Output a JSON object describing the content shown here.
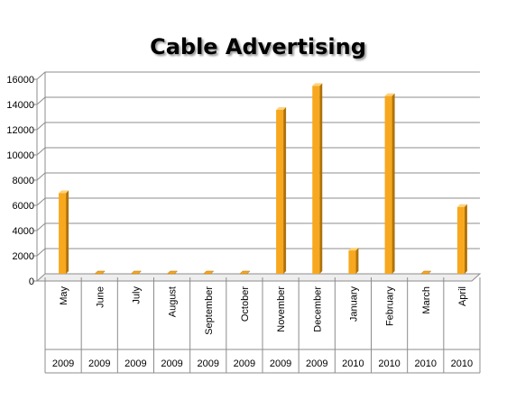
{
  "chart_data": {
    "type": "bar",
    "title": "Cable Advertising",
    "xlabel": "",
    "ylabel": "",
    "ylim": [
      0,
      16000
    ],
    "y_ticks": [
      "0",
      "2000",
      "4000",
      "6000",
      "8000",
      "10000",
      "12000",
      "14000",
      "16000"
    ],
    "categories": [
      "May",
      "June",
      "July",
      "August",
      "September",
      "October",
      "November",
      "December",
      "January",
      "February",
      "March",
      "April"
    ],
    "years": [
      "2009",
      "2009",
      "2009",
      "2009",
      "2009",
      "2009",
      "2009",
      "2009",
      "2010",
      "2010",
      "2010",
      "2010"
    ],
    "values": [
      6400,
      0,
      0,
      0,
      0,
      0,
      13000,
      14900,
      1850,
      14100,
      0,
      5300
    ],
    "grid": true,
    "legend": "none",
    "colors": {
      "bar_front": "#F7A81E",
      "bar_side": "#B07208",
      "bar_top": "#FFD27A",
      "grid": "#8C8C8C",
      "axis": "#8C8C8C"
    }
  }
}
